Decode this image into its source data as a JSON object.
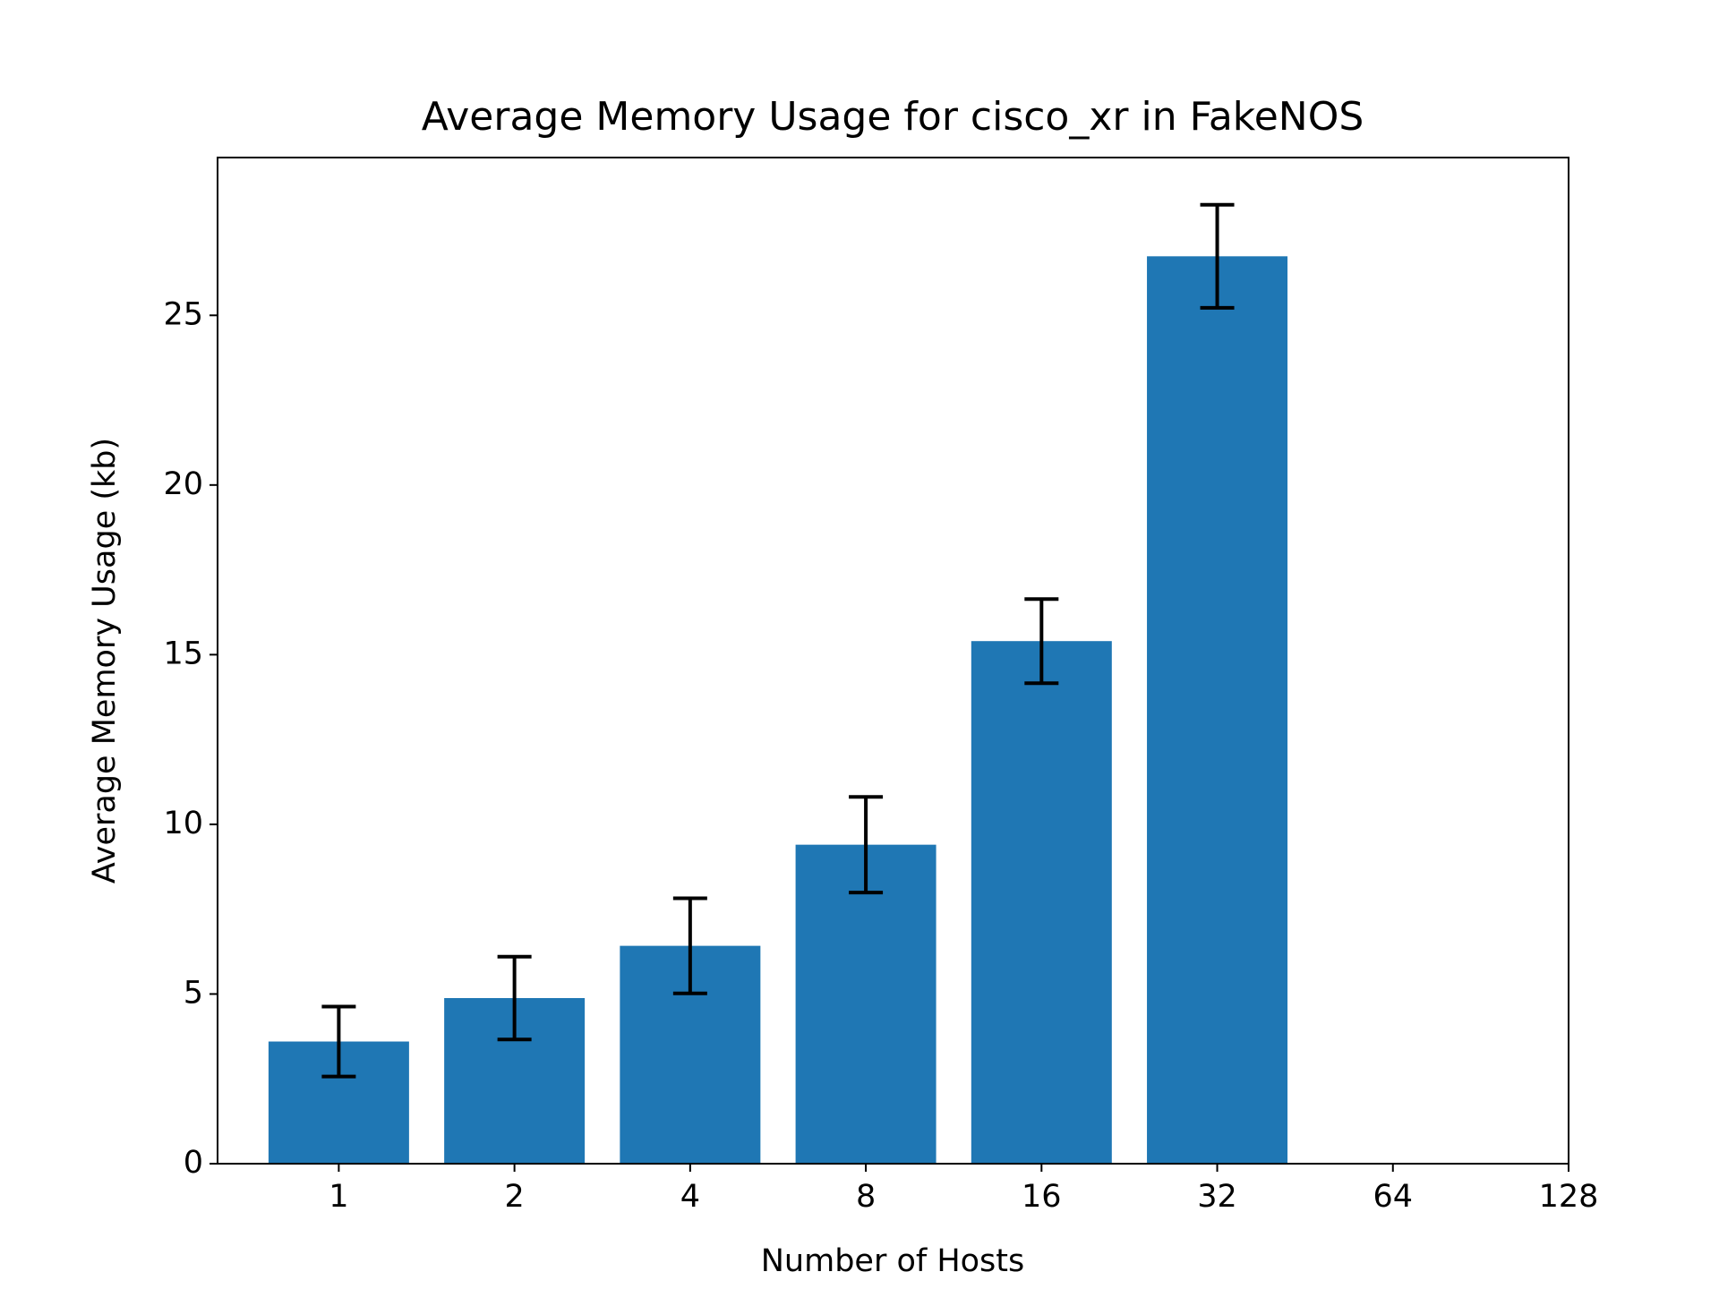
{
  "chart_data": {
    "type": "bar",
    "title": "Average Memory Usage for cisco_xr in FakeNOS",
    "x_label": "Number of Hosts",
    "y_label": "Average Memory Usage (kb)",
    "categories": [
      "1",
      "2",
      "4",
      "8",
      "16",
      "32",
      "64",
      "128"
    ],
    "values": [
      3.6,
      4.88,
      6.42,
      9.4,
      15.4,
      26.74,
      null,
      null
    ],
    "errors": [
      1.03,
      1.22,
      1.4,
      1.41,
      1.24,
      1.52,
      null,
      null
    ],
    "color": "#1f77b4",
    "ylim": [
      0,
      29.65
    ],
    "yticks": [
      0,
      5,
      10,
      15,
      20,
      25
    ],
    "grid": false
  }
}
